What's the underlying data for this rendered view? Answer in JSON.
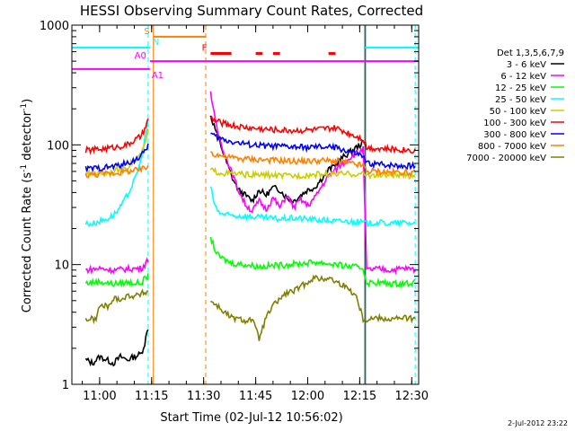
{
  "chart_data": {
    "type": "line",
    "title": "HESSI Observing Summary Count Rates, Corrected",
    "xlabel": "Start Time (02-Jul-12 10:56:02)",
    "ylabel_main": "Corrected Count Rate (s",
    "ylabel_sup1": "-1",
    "ylabel_mid": " detector",
    "ylabel_sup2": "-1",
    "ylabel_end": ")",
    "footer": "2-Jul-2012 23:22",
    "x_range_min": [
      -4,
      96
    ],
    "y_log": true,
    "y_range": [
      1,
      1000
    ],
    "x_ticks": [
      {
        "v": 4,
        "label": "11:00"
      },
      {
        "v": 19,
        "label": "11:15"
      },
      {
        "v": 34,
        "label": "11:30"
      },
      {
        "v": 49,
        "label": "11:45"
      },
      {
        "v": 64,
        "label": "12:00"
      },
      {
        "v": 79,
        "label": "12:15"
      },
      {
        "v": 94,
        "label": "12:30"
      }
    ],
    "y_ticks": [
      {
        "v": 1,
        "label": "1"
      },
      {
        "v": 10,
        "label": "10"
      },
      {
        "v": 100,
        "label": "100"
      },
      {
        "v": 1000,
        "label": "1000"
      }
    ],
    "legend": {
      "title": "Det 1,3,5,6,7,9",
      "entries": [
        {
          "label": "3 - 6 keV",
          "color": "#000000"
        },
        {
          "label": "6 - 12 keV",
          "color": "#ff00ff"
        },
        {
          "label": "12 - 25 keV",
          "color": "#00ff00"
        },
        {
          "label": "25 - 50 keV",
          "color": "#00ffff"
        },
        {
          "label": "50 - 100 keV",
          "color": "#cccc00"
        },
        {
          "label": "100 - 300 keV",
          "color": "#ff0000"
        },
        {
          "label": "300 - 800 keV",
          "color": "#0000ff"
        },
        {
          "label": "800 - 7000 keV",
          "color": "#ff8000"
        },
        {
          "label": "7000 - 20000 keV",
          "color": "#808000"
        }
      ]
    },
    "markers": [
      {
        "label": "S",
        "color": "#ff8000",
        "y": 800,
        "x_start": 19.5,
        "x_end": 34.5,
        "style": "solid"
      },
      {
        "label": "N",
        "color": "#00ffff",
        "y": 650,
        "x_start": -4,
        "x_end": 18.5,
        "style": "solid"
      },
      {
        "label": "",
        "color": "#00ffff",
        "y": 650,
        "x_start": 80.5,
        "x_end": 96,
        "style": "solid"
      },
      {
        "label": "A0",
        "color": "#ff00ff",
        "y": 500,
        "x_start": 18.5,
        "x_end": 96,
        "style": "solid"
      },
      {
        "label": "A1",
        "color": "#ff00ff",
        "y": 430,
        "x_start": -4,
        "x_end": 18.5,
        "style": "solid"
      },
      {
        "label": "F",
        "color": "#ff0000",
        "y": 580,
        "segments": [
          [
            36,
            42
          ],
          [
            49,
            51
          ],
          [
            54,
            56
          ],
          [
            70,
            72
          ]
        ],
        "style": "solid"
      }
    ],
    "vlines": [
      {
        "x": 18.0,
        "color": "#00ffff",
        "style": "dashed"
      },
      {
        "x": 19.5,
        "color": "#ff8000",
        "style": "solid"
      },
      {
        "x": 34.6,
        "color": "#ff8000",
        "style": "dashed"
      },
      {
        "x": 80.5,
        "color": "#000000",
        "style": "solid"
      },
      {
        "x": 80.8,
        "color": "#00ffff",
        "style": "solid"
      },
      {
        "x": 95.0,
        "color": "#00ffff",
        "style": "dashed"
      }
    ],
    "series": [
      {
        "name": "3 - 6 keV",
        "color": "#000000",
        "x": [
          0,
          2,
          4,
          6,
          8,
          10,
          12,
          14,
          16,
          17,
          18,
          36,
          38,
          40,
          42,
          44,
          46,
          48,
          50,
          52,
          54,
          56,
          58,
          60,
          62,
          64,
          66,
          68,
          70,
          72,
          74,
          76,
          78,
          80
        ],
        "values": [
          1.6,
          1.5,
          1.7,
          1.6,
          1.5,
          1.7,
          1.6,
          1.7,
          1.8,
          2.2,
          3.0,
          175,
          120,
          80,
          55,
          42,
          38,
          34,
          42,
          38,
          44,
          42,
          36,
          34,
          38,
          42,
          44,
          52,
          62,
          68,
          78,
          86,
          95,
          105
        ]
      },
      {
        "name": "6 - 12 keV",
        "color": "#ff00ff",
        "x": [
          0,
          4,
          8,
          12,
          16,
          17,
          18,
          36,
          37,
          38,
          40,
          42,
          44,
          46,
          48,
          50,
          52,
          54,
          56,
          58,
          60,
          62,
          64,
          66,
          68,
          70,
          72,
          74,
          76,
          78,
          80,
          81,
          84,
          88,
          92,
          95
        ],
        "values": [
          9,
          9.3,
          9.0,
          9.2,
          9.3,
          10,
          11,
          280,
          180,
          130,
          85,
          60,
          42,
          32,
          28,
          34,
          29,
          36,
          30,
          38,
          30,
          35,
          31,
          36,
          45,
          55,
          62,
          70,
          78,
          85,
          92,
          9,
          9.2,
          9.0,
          9.3,
          9.1
        ]
      },
      {
        "name": "12 - 25 keV",
        "color": "#00ff00",
        "x": [
          0,
          4,
          8,
          12,
          16,
          17,
          18,
          36,
          37,
          38,
          40,
          42,
          46,
          50,
          54,
          58,
          62,
          66,
          70,
          74,
          78,
          80,
          81,
          84,
          88,
          92,
          95
        ],
        "values": [
          7,
          7.2,
          6.9,
          7.1,
          7.0,
          7.6,
          8.0,
          17,
          14,
          12,
          11,
          10.3,
          10,
          9.6,
          9.8,
          10,
          10.2,
          10.5,
          10.2,
          9.8,
          9.5,
          9.3,
          7,
          7.1,
          6.9,
          7.0,
          7.1
        ]
      },
      {
        "name": "25 - 50 keV",
        "color": "#00ffff",
        "x": [
          0,
          2,
          4,
          6,
          8,
          10,
          12,
          14,
          16,
          17,
          18,
          36,
          37,
          38,
          40,
          44,
          48,
          52,
          56,
          60,
          64,
          68,
          72,
          76,
          80,
          81,
          84,
          88,
          92,
          95
        ],
        "values": [
          22,
          22,
          23,
          24,
          26,
          30,
          38,
          50,
          75,
          110,
          160,
          45,
          33,
          28,
          26,
          25.5,
          25,
          24.5,
          24,
          24.5,
          24,
          23.5,
          23,
          23,
          22.5,
          22,
          22.5,
          22,
          22.5,
          22
        ]
      },
      {
        "name": "50 - 100 keV",
        "color": "#cccc00",
        "x": [
          0,
          4,
          8,
          12,
          16,
          17,
          18,
          36,
          37,
          40,
          44,
          48,
          52,
          56,
          60,
          64,
          68,
          72,
          76,
          80,
          81,
          84,
          88,
          92,
          95
        ],
        "values": [
          57,
          58,
          60,
          66,
          82,
          100,
          130,
          62,
          60,
          58,
          57,
          56,
          56,
          55,
          55,
          56,
          57,
          57,
          57,
          57,
          56,
          55.5,
          56,
          55,
          55.5
        ]
      },
      {
        "name": "100 - 300 keV",
        "color": "#ff0000",
        "x": [
          0,
          4,
          8,
          12,
          16,
          17,
          18,
          36,
          37,
          40,
          44,
          48,
          52,
          56,
          60,
          64,
          68,
          72,
          76,
          80,
          81,
          84,
          88,
          92,
          95
        ],
        "values": [
          90,
          92,
          95,
          100,
          118,
          135,
          160,
          170,
          160,
          150,
          142,
          138,
          135,
          133,
          132,
          133,
          135,
          138,
          125,
          112,
          95,
          94,
          92,
          91,
          90
        ]
      },
      {
        "name": "300 - 800 keV",
        "color": "#0000ff",
        "x": [
          0,
          4,
          8,
          12,
          16,
          17,
          18,
          36,
          37,
          40,
          44,
          48,
          52,
          56,
          60,
          64,
          68,
          72,
          76,
          80,
          81,
          84,
          88,
          92,
          95
        ],
        "values": [
          63,
          64,
          66,
          70,
          80,
          90,
          100,
          125,
          118,
          110,
          104,
          100,
          98,
          97,
          96,
          95,
          96,
          95,
          88,
          80,
          70,
          69,
          68,
          67,
          67
        ]
      },
      {
        "name": "800 - 7000 keV",
        "color": "#ff8000",
        "x": [
          0,
          4,
          8,
          12,
          16,
          17,
          18,
          36,
          37,
          40,
          44,
          48,
          52,
          56,
          60,
          64,
          68,
          72,
          76,
          80,
          81,
          84,
          88,
          92,
          95
        ],
        "values": [
          56,
          57,
          58,
          60,
          62,
          64,
          66,
          88,
          84,
          80,
          77,
          76,
          75,
          74,
          73,
          73,
          74,
          73,
          70,
          67,
          60,
          60,
          59,
          59,
          58
        ]
      },
      {
        "name": "7000 - 20000 keV",
        "color": "#808000",
        "x": [
          0,
          3,
          4,
          7,
          8,
          11,
          12,
          15,
          16,
          18,
          36,
          38,
          40,
          42,
          44,
          46,
          48,
          50,
          52,
          54,
          56,
          58,
          60,
          62,
          64,
          66,
          68,
          70,
          72,
          74,
          76,
          78,
          80,
          81,
          84,
          88,
          92,
          95
        ],
        "values": [
          3.5,
          3.5,
          4.5,
          4.5,
          5.2,
          5.2,
          5.5,
          5.5,
          5.7,
          6.0,
          5.0,
          4.5,
          4.0,
          3.6,
          3.5,
          3.4,
          3.5,
          2.4,
          3.6,
          4.5,
          5.2,
          5.8,
          6.0,
          6.5,
          7.2,
          7.8,
          7.5,
          7.8,
          7.2,
          6.8,
          6.2,
          5.5,
          3.5,
          3.5,
          3.6,
          3.5,
          3.6,
          3.5
        ]
      }
    ]
  }
}
